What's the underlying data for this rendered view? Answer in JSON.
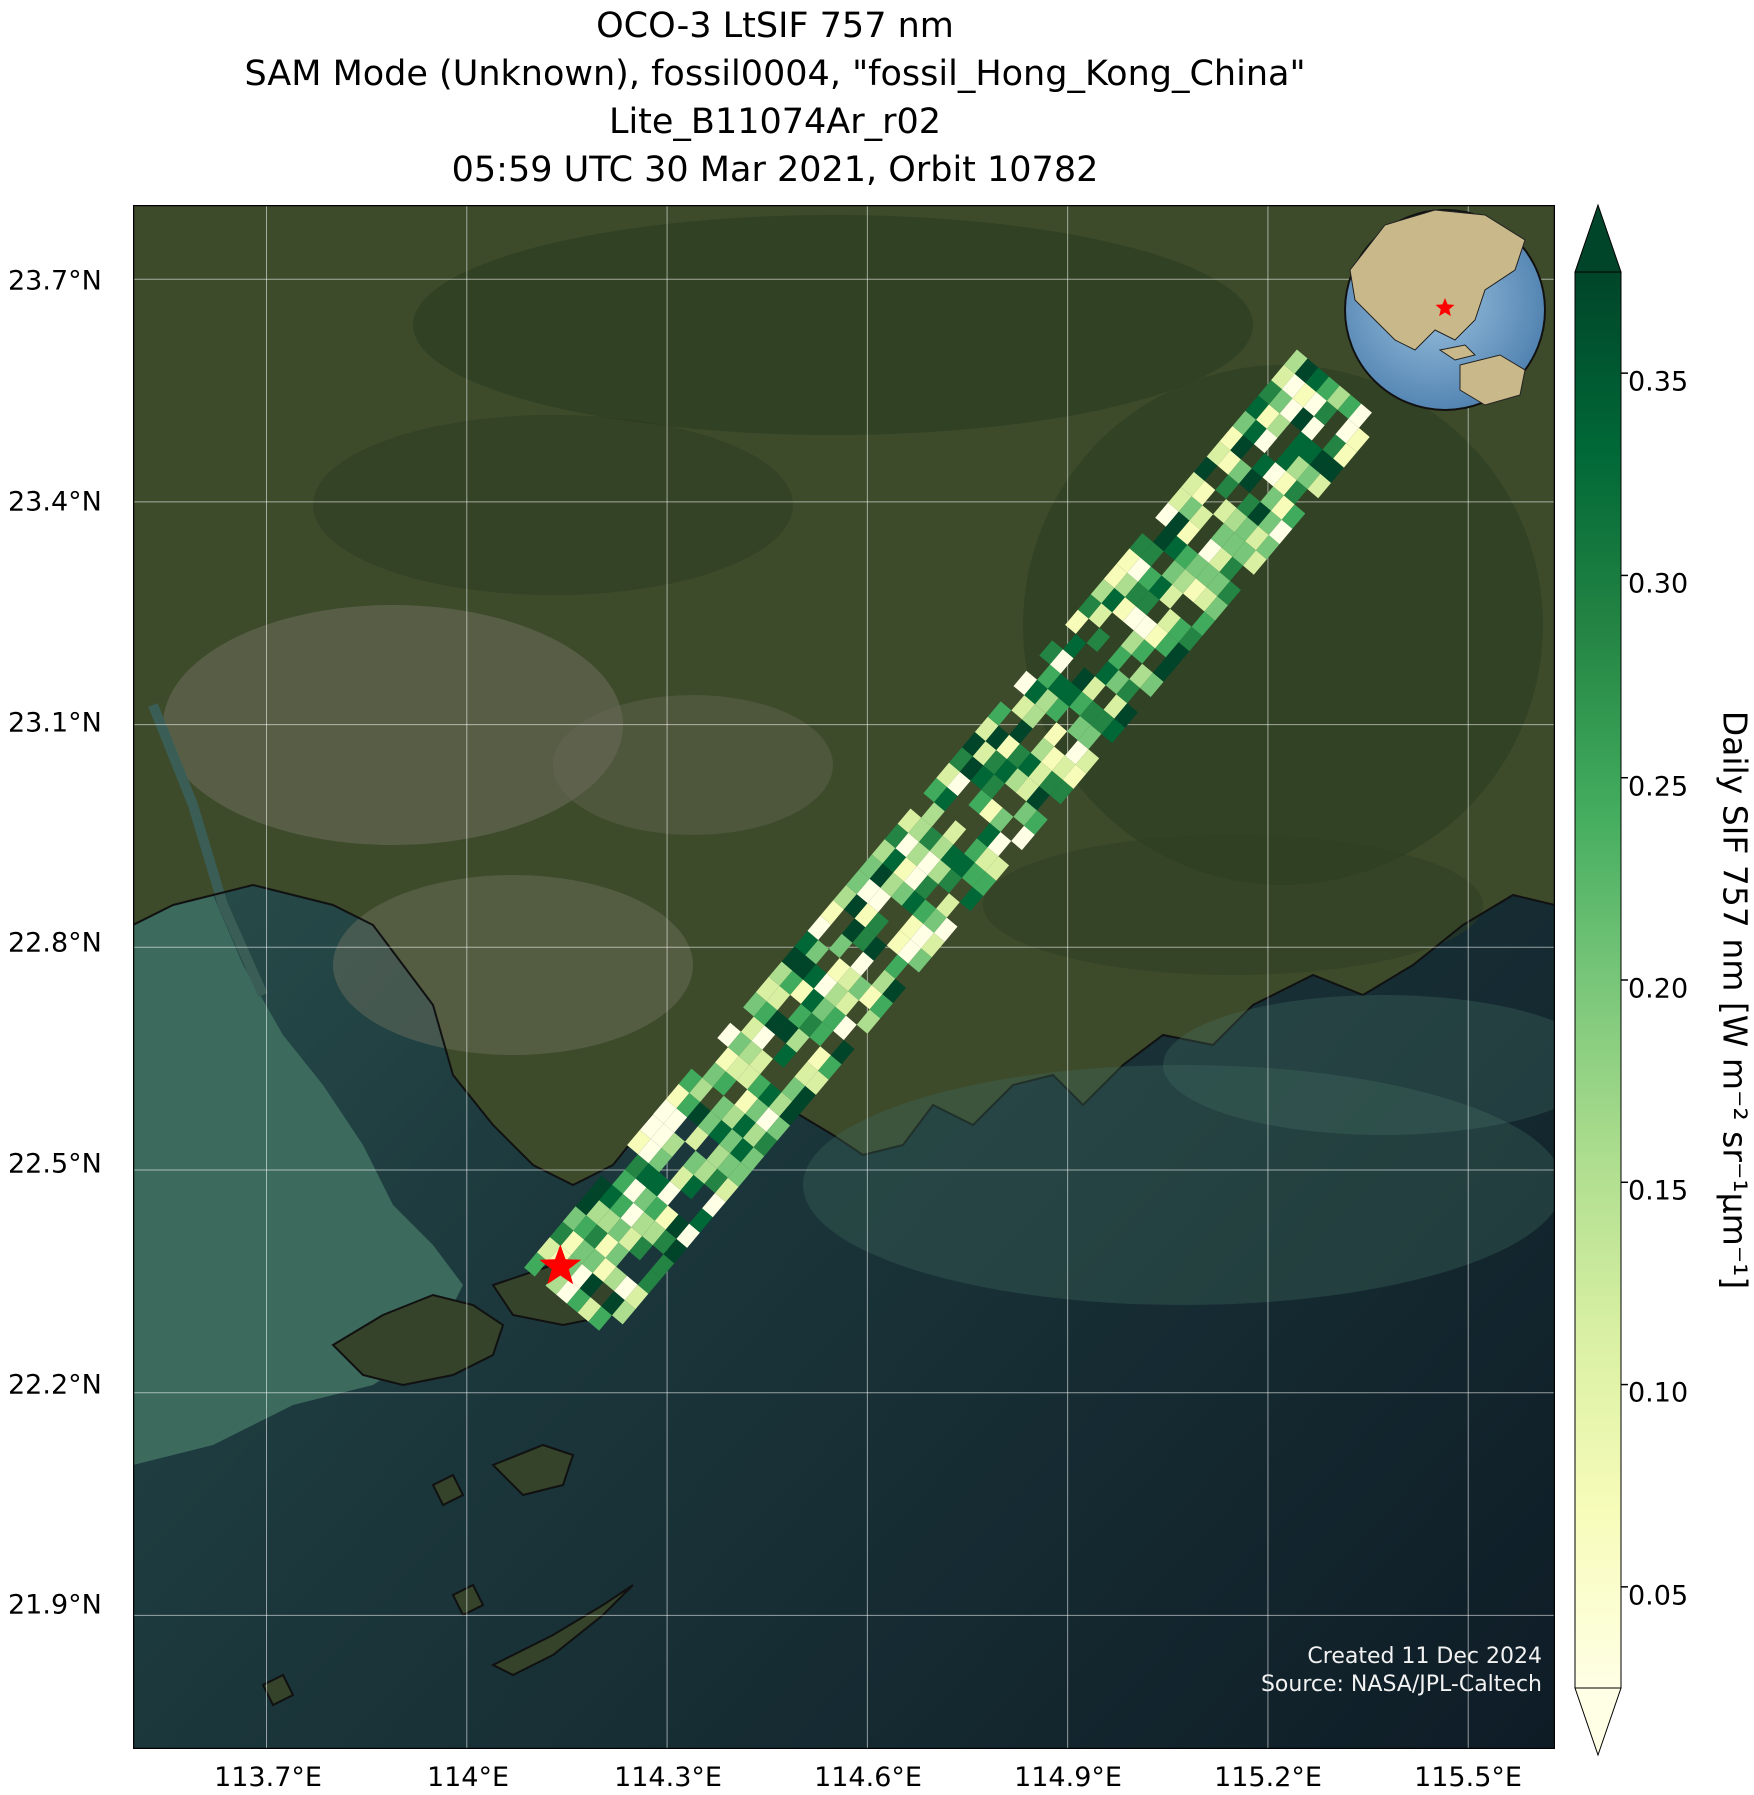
{
  "title_lines": [
    "OCO-3 LtSIF 757 nm",
    "SAM Mode (Unknown), fossil0004, \"fossil_Hong_Kong_China\"",
    "Lite_B11074Ar_r02",
    "05:59 UTC 30 Mar 2021, Orbit 10782"
  ],
  "map": {
    "lon_range": [
      113.5,
      115.63
    ],
    "lat_range": [
      21.72,
      23.8
    ],
    "lat_ticks": [
      {
        "value": 23.7,
        "label": "23.7°N"
      },
      {
        "value": 23.4,
        "label": "23.4°N"
      },
      {
        "value": 23.1,
        "label": "23.1°N"
      },
      {
        "value": 22.8,
        "label": "22.8°N"
      },
      {
        "value": 22.5,
        "label": "22.5°N"
      },
      {
        "value": 22.2,
        "label": "22.2°N"
      },
      {
        "value": 21.9,
        "label": "21.9°N"
      }
    ],
    "lon_ticks": [
      {
        "value": 113.7,
        "label": "113.7°E"
      },
      {
        "value": 114.0,
        "label": "114°E"
      },
      {
        "value": 114.3,
        "label": "114.3°E"
      },
      {
        "value": 114.6,
        "label": "114.6°E"
      },
      {
        "value": 114.9,
        "label": "114.9°E"
      },
      {
        "value": 115.2,
        "label": "115.2°E"
      },
      {
        "value": 115.5,
        "label": "115.5°E"
      }
    ],
    "target_marker": {
      "lon": 114.14,
      "lat": 22.37,
      "color": "#ff0000"
    },
    "land_color": "#3b4a2a",
    "urban_color": "#7a7a6a",
    "water_color_bay": "#2f5a52",
    "water_color_sea": "#14252e",
    "sounding_track": {
      "start": {
        "lon": 114.15,
        "lat": 22.32
      },
      "end": {
        "lon": 115.32,
        "lat": 23.57
      }
    }
  },
  "colorbar": {
    "label": "Daily SIF 757 nm [W m⁻² sr⁻¹μm⁻¹]",
    "min": 0.025,
    "max": 0.375,
    "ticks": [
      {
        "value": 0.35,
        "label": "0.35"
      },
      {
        "value": 0.3,
        "label": "0.30"
      },
      {
        "value": 0.25,
        "label": "0.25"
      },
      {
        "value": 0.2,
        "label": "0.20"
      },
      {
        "value": 0.15,
        "label": "0.15"
      },
      {
        "value": 0.1,
        "label": "0.10"
      },
      {
        "value": 0.05,
        "label": "0.05"
      }
    ],
    "colormap": [
      "#ffffe5",
      "#f7fcb9",
      "#d9f0a3",
      "#addd8e",
      "#78c679",
      "#41ab5d",
      "#238443",
      "#006837",
      "#004529"
    ]
  },
  "credits": {
    "created": "Created 11 Dec 2024",
    "source": "Source: NASA/JPL-Caltech"
  }
}
